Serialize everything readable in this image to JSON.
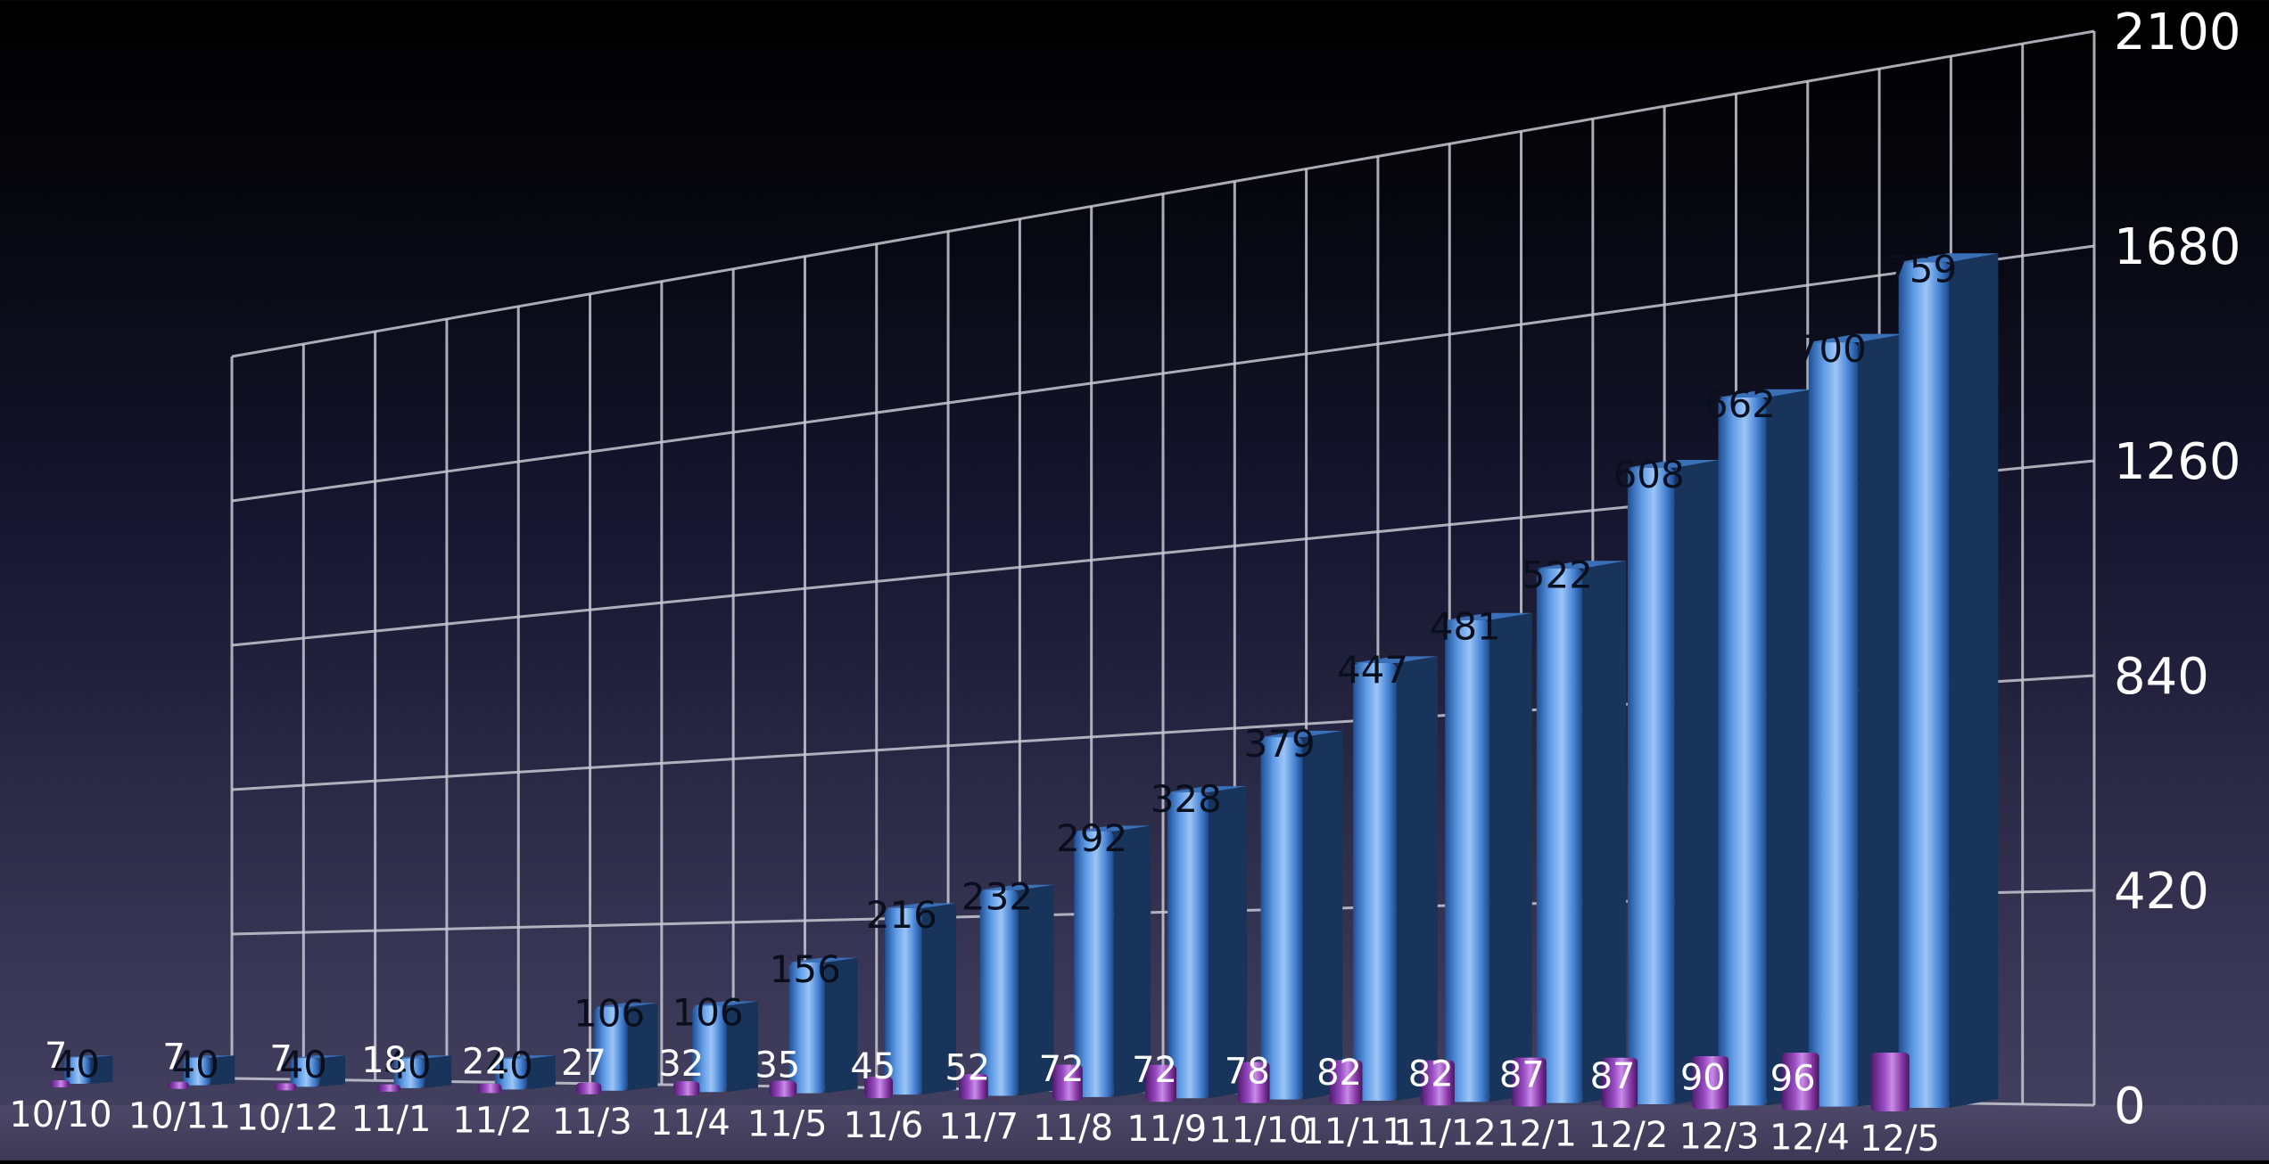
{
  "chart_data": {
    "type": "bar",
    "title": "",
    "xlabel": "",
    "ylabel": "",
    "ylim": [
      0,
      2100
    ],
    "yticks": [
      0,
      420,
      840,
      1260,
      1680,
      2100
    ],
    "grid": true,
    "legend": "none",
    "categories": [
      "10/10",
      "10/11",
      "10/12",
      "11/1",
      "11/2",
      "11/3",
      "11/4",
      "11/5",
      "11/6",
      "11/7",
      "11/8",
      "11/9",
      "11/10",
      "11/11",
      "11/12",
      "12/1",
      "12/2",
      "12/3",
      "12/4",
      "12/5"
    ],
    "series": [
      {
        "color": "#4a8ad8",
        "values": [
          40,
          40,
          40,
          40,
          40,
          106,
          106,
          156,
          216,
          232,
          292,
          328,
          379,
          447,
          481,
          522,
          608,
          662,
          700,
          759
        ]
      },
      {
        "color": "#8a3aa8",
        "values": [
          7,
          7,
          7,
          18,
          22,
          27,
          32,
          35,
          45,
          52,
          72,
          72,
          78,
          82,
          82,
          87,
          87,
          90,
          96,
          96
        ]
      }
    ],
    "value_labels": {
      "series_0": [
        "40",
        "40",
        "40",
        "40",
        "40",
        "106",
        "106",
        "156",
        "216",
        "232",
        "292",
        "328",
        "379",
        "447",
        "481",
        "522",
        "608",
        "662",
        "700",
        "759"
      ],
      "series_1": [
        "7",
        "7",
        "7",
        "18",
        "22",
        "27",
        "32",
        "35",
        "45",
        "52",
        "72",
        "72",
        "78",
        "82",
        "82",
        "87",
        "87",
        "90",
        "96",
        ""
      ]
    }
  }
}
